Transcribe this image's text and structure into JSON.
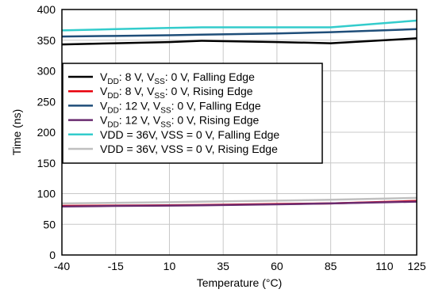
{
  "chart_data": {
    "type": "line",
    "title": "",
    "xlabel": "Temperature (°C)",
    "ylabel": "Time (ns)",
    "xlim": [
      -40,
      125
    ],
    "ylim": [
      0,
      400
    ],
    "x_ticks": [
      -40,
      -15,
      10,
      35,
      60,
      85,
      110,
      125
    ],
    "y_ticks": [
      0,
      50,
      100,
      150,
      200,
      250,
      300,
      350,
      400
    ],
    "grid": true,
    "legend_position": "middle-left",
    "series": [
      {
        "name": "VDD: 8 V, VSS: 0 V, Falling Edge",
        "color": "#000000",
        "x": [
          -40,
          -15,
          10,
          25,
          60,
          85,
          125
        ],
        "y": [
          343,
          345,
          347,
          349,
          347,
          345,
          353
        ]
      },
      {
        "name": "VDD: 8 V, VSS: 0 V, Rising Edge",
        "color": "#e8000b",
        "x": [
          -40,
          -15,
          10,
          25,
          60,
          85,
          125
        ],
        "y": [
          80,
          80.5,
          81,
          81.5,
          83,
          84,
          88
        ]
      },
      {
        "name": "VDD: 12 V, VSS: 0 V, Falling Edge",
        "color": "#1f4e79",
        "x": [
          -40,
          -15,
          10,
          25,
          60,
          85,
          125
        ],
        "y": [
          356,
          357,
          358,
          359,
          361,
          363,
          368
        ]
      },
      {
        "name": "VDD: 12 V, VSS: 0 V, Rising Edge",
        "color": "#6a2c70",
        "x": [
          -40,
          -15,
          10,
          25,
          60,
          85,
          125
        ],
        "y": [
          79,
          80,
          80.5,
          81,
          82.5,
          84,
          87
        ]
      },
      {
        "name": "VDD = 36V, VSS = 0 V, Falling Edge",
        "color": "#33cccc",
        "x": [
          -40,
          -15,
          10,
          25,
          60,
          85,
          125
        ],
        "y": [
          366,
          368,
          370,
          371,
          371,
          371,
          382
        ]
      },
      {
        "name": "VDD = 36V, VSS = 0 V, Rising Edge",
        "color": "#c0c0c0",
        "x": [
          -40,
          -15,
          10,
          25,
          60,
          85,
          125
        ],
        "y": [
          84,
          85,
          86,
          87,
          88.5,
          90,
          93
        ]
      }
    ],
    "legend_entries": [
      {
        "base": "V",
        "sub1": "DD",
        "mid": ": 8 V, V",
        "sub2": "SS",
        "rest": ": 0 V, Falling Edge"
      },
      {
        "base": "V",
        "sub1": "DD",
        "mid": ": 8 V, V",
        "sub2": "SS",
        "rest": ": 0 V, Rising Edge"
      },
      {
        "base": "V",
        "sub1": "DD",
        "mid": ": 12 V, V",
        "sub2": "SS",
        "rest": ": 0 V, Falling Edge"
      },
      {
        "base": "V",
        "sub1": "DD",
        "mid": ": 12 V, V",
        "sub2": "SS",
        "rest": ": 0 V, Rising Edge"
      },
      {
        "plain": "VDD = 36V, VSS = 0 V, Falling Edge"
      },
      {
        "plain": "VDD = 36V, VSS = 0 V, Rising Edge"
      }
    ]
  }
}
